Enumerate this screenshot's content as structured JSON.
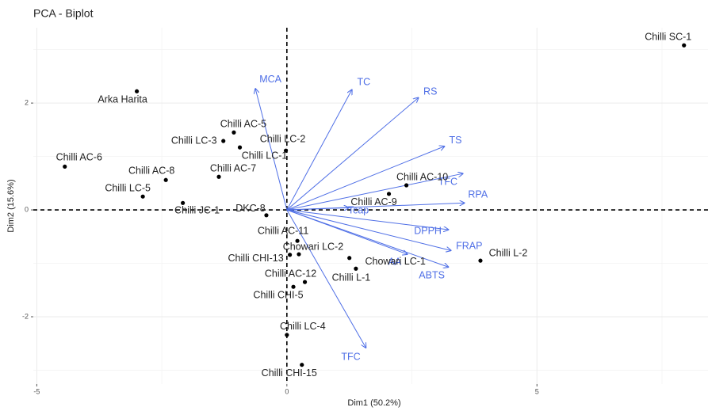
{
  "chart_data": {
    "type": "biplot",
    "title": "PCA - Biplot",
    "xlabel": "Dim1 (50.2%)",
    "ylabel": "Dim2 (15.6%)",
    "xlim": [
      -5.07,
      8.42
    ],
    "ylim": [
      -3.26,
      3.41
    ],
    "xticks": [
      -5,
      0,
      5
    ],
    "yticks": [
      -2,
      0,
      2
    ],
    "grid": true,
    "points": {
      "color": "#000000",
      "labels": [
        "Chilli SC-1",
        "Arka Harita",
        "Chilli AC-5",
        "Chilli LC-3",
        "Chilli LC-2",
        "Chilli LC-1",
        "Chilli AC-6",
        "Chilli AC-8",
        "Chilli AC-7",
        "Chilli LC-5",
        "Chilli JC-1",
        "DKC-8",
        "Chilli AC-10",
        "Chilli AC-9",
        "Chilli AC-11",
        "Chowari LC-2",
        "Chilli CHI-13",
        "Chowari LC-1",
        "Chilli L-1",
        "Chilli L-2",
        "Chilli AC-12",
        "Chilli CHI-5",
        "Chilli LC-4",
        "Chilli CHI-15"
      ],
      "x": [
        7.94,
        -3.0,
        -1.06,
        -1.27,
        -0.02,
        -0.94,
        -4.44,
        -2.42,
        -1.36,
        -2.88,
        -2.08,
        -0.41,
        2.39,
        2.04,
        0.21,
        0.24,
        0.06,
        1.25,
        1.38,
        3.87,
        0.36,
        0.13,
        0.0,
        0.3
      ],
      "y": [
        3.08,
        2.22,
        1.45,
        1.29,
        1.11,
        1.17,
        0.81,
        0.56,
        0.62,
        0.25,
        0.13,
        -0.1,
        0.46,
        0.3,
        -0.58,
        -0.83,
        -0.84,
        -0.9,
        -1.1,
        -0.95,
        -1.35,
        -1.44,
        -2.34,
        -2.9
      ]
    },
    "loadings": {
      "color": "#4f6fe6",
      "labels": [
        "MCA",
        "TC",
        "RS",
        "TS",
        "TFC",
        "RPA",
        "Tcap",
        "DPPH",
        "FRAP",
        "AA",
        "ABTS",
        "TFC"
      ],
      "x": [
        -0.63,
        1.3,
        2.63,
        3.15,
        3.52,
        3.55,
        1.24,
        3.23,
        3.28,
        2.41,
        3.23,
        1.58
      ],
      "y": [
        2.27,
        2.25,
        2.1,
        1.19,
        0.68,
        0.13,
        0.04,
        -0.37,
        -0.76,
        -0.83,
        -1.07,
        -2.58
      ]
    }
  }
}
